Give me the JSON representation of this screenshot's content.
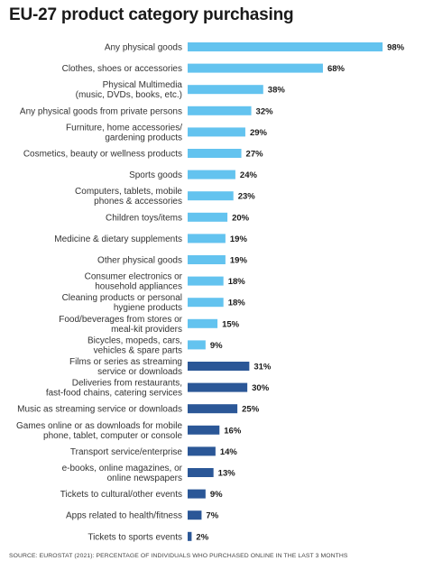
{
  "title": "EU-27 product category purchasing",
  "source": "SOURCE: EUROSTAT (2021): PERCENTAGE OF INDIVIDUALS WHO PURCHASED ONLINE IN THE LAST 3 MONTHS",
  "colors": {
    "goods": "#63c3ef",
    "services": "#2b5797"
  },
  "chart_data": {
    "type": "bar",
    "orientation": "horizontal",
    "title": "EU-27 product category purchasing",
    "unit": "%",
    "xlim": [
      0,
      100
    ],
    "grid": false,
    "categories": [
      [
        "Any physical goods"
      ],
      [
        "Clothes, shoes or accessories"
      ],
      [
        "Physical Multimedia",
        "(music, DVDs, books, etc.)"
      ],
      [
        "Any physical goods from private persons"
      ],
      [
        "Furniture, home accessories/",
        "gardening products"
      ],
      [
        "Cosmetics, beauty or wellness products"
      ],
      [
        "Sports goods"
      ],
      [
        "Computers, tablets, mobile",
        "phones & accessories"
      ],
      [
        "Children toys/items"
      ],
      [
        "Medicine & dietary supplements"
      ],
      [
        "Other physical goods"
      ],
      [
        "Consumer electronics or",
        "household appliances"
      ],
      [
        "Cleaning products or personal",
        "hygiene products"
      ],
      [
        "Food/beverages from stores or",
        "meal-kit providers"
      ],
      [
        "Bicycles, mopeds, cars,",
        "vehicles & spare parts"
      ],
      [
        "Films or series as streaming",
        "service or downloads"
      ],
      [
        "Deliveries from restaurants,",
        "fast-food chains, catering services"
      ],
      [
        "Music as streaming service or downloads"
      ],
      [
        "Games online or as downloads for mobile",
        "phone, tablet, computer or console"
      ],
      [
        "Transport service/enterprise"
      ],
      [
        "e-books, online magazines, or",
        "online newspapers"
      ],
      [
        "Tickets to cultural/other events"
      ],
      [
        "Apps related to health/fitness"
      ],
      [
        "Tickets to sports events"
      ]
    ],
    "values": [
      98,
      68,
      38,
      32,
      29,
      27,
      24,
      23,
      20,
      19,
      19,
      18,
      18,
      15,
      9,
      31,
      30,
      25,
      16,
      14,
      13,
      9,
      7,
      2
    ],
    "value_labels": [
      "98%",
      "68%",
      "38%",
      "32%",
      "29%",
      "27%",
      "24%",
      "23%",
      "20%",
      "19%",
      "19%",
      "18%",
      "18%",
      "15%",
      "9%",
      "31%",
      "30%",
      "25%",
      "16%",
      "14%",
      "13%",
      "9%",
      "7%",
      "2%"
    ],
    "group": [
      "goods",
      "goods",
      "goods",
      "goods",
      "goods",
      "goods",
      "goods",
      "goods",
      "goods",
      "goods",
      "goods",
      "goods",
      "goods",
      "goods",
      "goods",
      "services",
      "services",
      "services",
      "services",
      "services",
      "services",
      "services",
      "services",
      "services"
    ]
  }
}
